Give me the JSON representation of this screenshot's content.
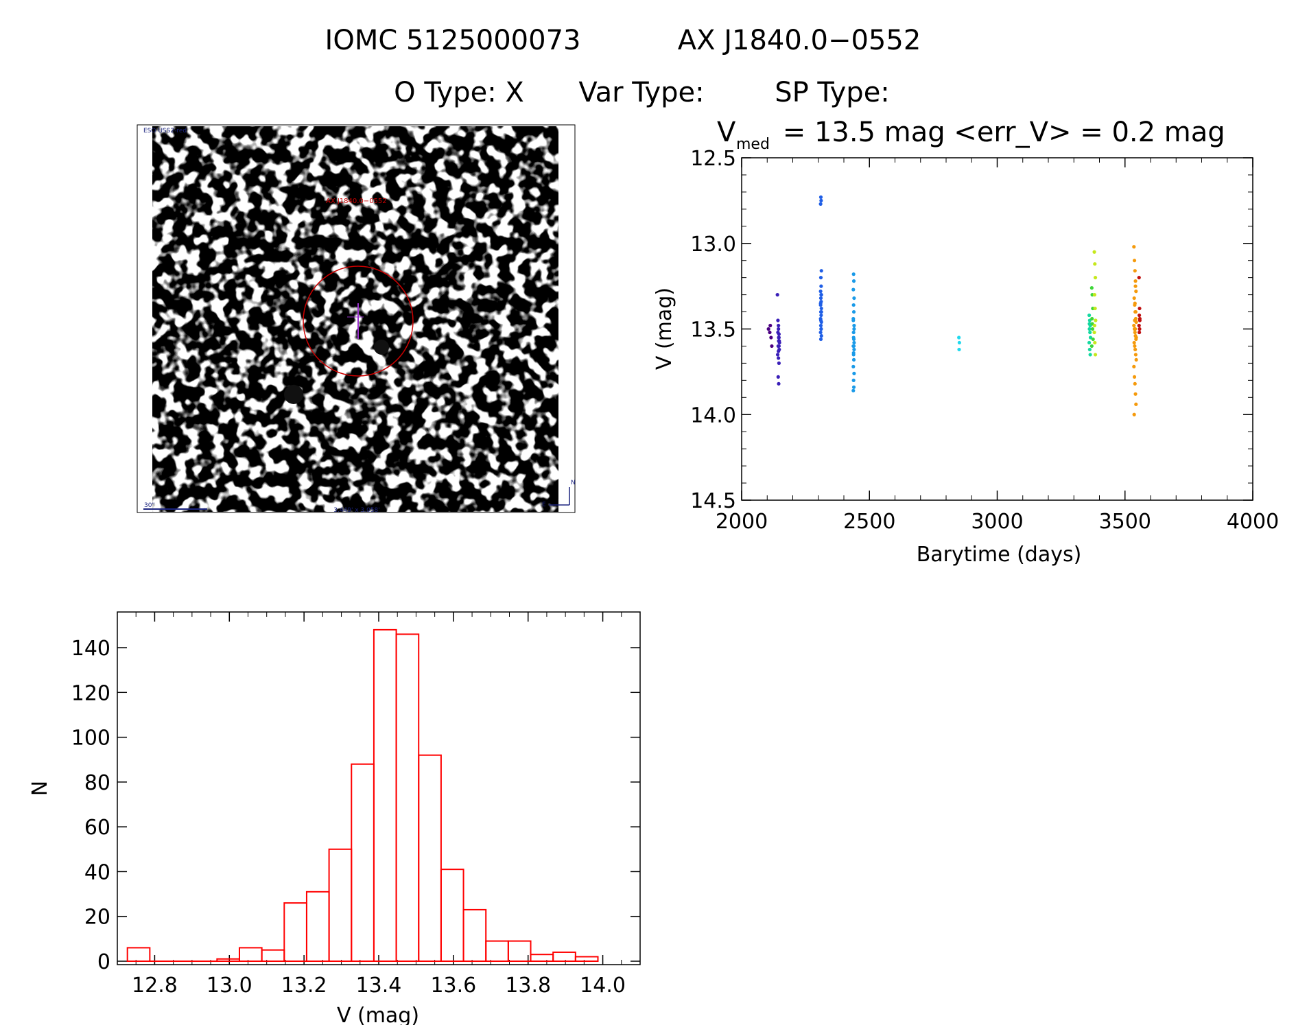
{
  "header": {
    "object_id": "IOMC 5125000073",
    "source_name": "AX J1840.0−0552",
    "o_type": "O Type: X",
    "var_type": "Var Type:",
    "sp_type": "SP Type:"
  },
  "finder": {
    "survey_label": "ESO USS2-red",
    "target_label": "AX J1840.0−0552",
    "scale_label": "30\"",
    "fov_label": "3.449' x 3.058'",
    "north_label": "N",
    "east_label": "E"
  },
  "lightcurve_header": {
    "v_prefix": "V",
    "v_subscript": "med",
    "stats": " = 13.5 mag <err_V> = 0.2 mag"
  },
  "chart_data": [
    {
      "type": "scatter",
      "xlabel": "Barytime (days)",
      "ylabel": "V (mag)",
      "xlim": [
        2000,
        4000
      ],
      "ylim": [
        14.5,
        12.5
      ],
      "y_inverted": true,
      "xticks": [
        "2000",
        "2500",
        "3000",
        "3500",
        "4000"
      ],
      "yticks": [
        "12.5",
        "13.0",
        "13.5",
        "14.0",
        "14.5"
      ],
      "ytick_values": [
        12.5,
        13.0,
        13.5,
        14.0,
        14.5
      ],
      "xtick_values": [
        2000,
        2500,
        3000,
        3500,
        4000
      ],
      "groups": [
        {
          "color": "#4b0082",
          "x": [
            2105,
            2110,
            2115,
            2112,
            2118
          ],
          "y": [
            13.5,
            13.52,
            13.55,
            13.48,
            13.6
          ]
        },
        {
          "color": "#3a1fb8",
          "x": [
            2140,
            2142,
            2144,
            2146,
            2145,
            2143,
            2147,
            2141,
            2144,
            2146,
            2145,
            2148,
            2142,
            2144,
            2146,
            2143,
            2145,
            2147,
            2144,
            2146
          ],
          "y": [
            13.3,
            13.45,
            13.5,
            13.55,
            13.57,
            13.6,
            13.62,
            13.65,
            13.67,
            13.7,
            13.55,
            13.58,
            13.52,
            13.63,
            13.6,
            13.78,
            13.82,
            13.57,
            13.48,
            13.53
          ]
        },
        {
          "color": "#1f5ee6",
          "x": [
            2310,
            2311,
            2309,
            2312,
            2310,
            2311,
            2309,
            2312,
            2310,
            2311,
            2309,
            2312,
            2310,
            2311,
            2309,
            2312,
            2310,
            2311,
            2309,
            2312,
            2310,
            2311,
            2309,
            2312,
            2310,
            2311
          ],
          "y": [
            12.73,
            12.75,
            12.77,
            13.16,
            13.2,
            13.25,
            13.28,
            13.3,
            13.32,
            13.34,
            13.36,
            13.38,
            13.4,
            13.42,
            13.44,
            13.46,
            13.48,
            13.5,
            13.52,
            13.54,
            13.56,
            13.3,
            13.35,
            13.4,
            13.45,
            13.5
          ]
        },
        {
          "color": "#1a9ae8",
          "x": [
            2438,
            2439,
            2437,
            2440,
            2438,
            2439,
            2437,
            2440,
            2438,
            2439,
            2437,
            2440,
            2438,
            2439,
            2437,
            2440,
            2438,
            2439,
            2437,
            2440,
            2438,
            2439,
            2437,
            2440,
            2438
          ],
          "y": [
            13.18,
            13.22,
            13.27,
            13.32,
            13.36,
            13.4,
            13.44,
            13.48,
            13.52,
            13.56,
            13.6,
            13.62,
            13.65,
            13.68,
            13.72,
            13.76,
            13.8,
            13.84,
            13.86,
            13.5,
            13.55,
            13.6,
            13.45,
            13.58,
            13.64
          ]
        },
        {
          "color": "#20d9ee",
          "x": [
            2850,
            2852,
            2851
          ],
          "y": [
            13.55,
            13.58,
            13.62
          ]
        },
        {
          "color": "#14d9a0",
          "x": [
            3360,
            3362,
            3364,
            3361,
            3363,
            3365,
            3360,
            3362,
            3364,
            3361
          ],
          "y": [
            13.42,
            13.45,
            13.48,
            13.5,
            13.52,
            13.55,
            13.58,
            13.62,
            13.65,
            13.47
          ]
        },
        {
          "color": "#3ed63a",
          "x": [
            3370,
            3372,
            3374,
            3371,
            3373,
            3375,
            3370,
            3372
          ],
          "y": [
            13.26,
            13.3,
            13.38,
            13.44,
            13.5,
            13.56,
            13.6,
            13.47
          ]
        },
        {
          "color": "#c6e81c",
          "x": [
            3380,
            3382,
            3384,
            3381,
            3383,
            3385,
            3380,
            3382,
            3384,
            3381
          ],
          "y": [
            13.05,
            13.12,
            13.2,
            13.3,
            13.38,
            13.45,
            13.52,
            13.58,
            13.65,
            13.48
          ]
        },
        {
          "color": "#f59a0c",
          "x": [
            3535,
            3537,
            3539,
            3541,
            3543,
            3536,
            3538,
            3540,
            3542,
            3544,
            3535,
            3537,
            3539,
            3541,
            3543,
            3536,
            3538,
            3540,
            3542,
            3544,
            3535,
            3537,
            3539,
            3541,
            3543,
            3536,
            3538,
            3540,
            3542,
            3544,
            3539,
            3541
          ],
          "y": [
            13.02,
            13.1,
            13.16,
            13.22,
            13.28,
            13.32,
            13.36,
            13.4,
            13.44,
            13.46,
            13.48,
            13.5,
            13.52,
            13.54,
            13.56,
            13.58,
            13.6,
            13.62,
            13.65,
            13.68,
            13.72,
            13.78,
            13.82,
            13.88,
            13.94,
            14.0,
            13.45,
            13.5,
            13.4,
            13.55,
            13.35,
            13.25
          ]
        },
        {
          "color": "#c01010",
          "x": [
            3555,
            3557,
            3556,
            3558,
            3555,
            3557,
            3556,
            3558
          ],
          "y": [
            13.2,
            13.38,
            13.42,
            13.45,
            13.48,
            13.5,
            13.52,
            13.44
          ]
        }
      ]
    },
    {
      "type": "bar",
      "xlabel": "V (mag)",
      "ylabel": "N",
      "xlim": [
        12.7,
        14.1
      ],
      "ylim": [
        0,
        150
      ],
      "xticks": [
        "12.8",
        "13.0",
        "13.2",
        "13.4",
        "13.6",
        "13.8",
        "14.0"
      ],
      "xtick_values": [
        12.8,
        13.0,
        13.2,
        13.4,
        13.6,
        13.8,
        14.0
      ],
      "yticks": [
        "0",
        "20",
        "40",
        "60",
        "80",
        "100",
        "120",
        "140"
      ],
      "ytick_values": [
        0,
        20,
        40,
        60,
        80,
        100,
        120,
        140
      ],
      "bin_width": 0.06,
      "bin_starts": [
        12.727,
        12.787,
        12.847,
        12.907,
        12.967,
        13.027,
        13.087,
        13.147,
        13.207,
        13.267,
        13.327,
        13.387,
        13.447,
        13.507,
        13.567,
        13.627,
        13.687,
        13.747,
        13.807,
        13.867,
        13.927
      ],
      "values": [
        6,
        0,
        0,
        0,
        1,
        6,
        5,
        26,
        31,
        50,
        88,
        148,
        146,
        92,
        41,
        23,
        9,
        9,
        3,
        4,
        2
      ],
      "color": "#ff0000"
    }
  ]
}
